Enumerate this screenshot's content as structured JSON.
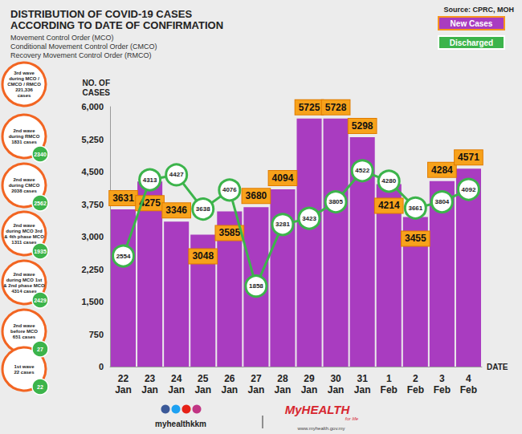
{
  "chart_data": {
    "type": "bar",
    "title": "DISTRIBUTION OF COVID-19 CASES\nACCORDING TO DATE OF CONFIRMATION",
    "subtitle": [
      "Movement Control Order (MCO)",
      "Conditional Movement Control Order (CMCO)",
      "Recovery Movement Control Order (RMCO)"
    ],
    "source": "Source: CPRC, MOH",
    "y_label": "NO. OF\nCASES",
    "x_label": "DATE",
    "categories": [
      "22 Jan",
      "23 Jan",
      "24 Jan",
      "25 Jan",
      "26 Jan",
      "27 Jan",
      "28 Jan",
      "29 Jan",
      "30 Jan",
      "31 Jan",
      "1 Feb",
      "2 Feb",
      "3 Feb",
      "4 Feb"
    ],
    "series": [
      {
        "name": "New Cases",
        "type": "bar",
        "color": "#a93cc0",
        "values": [
          3631,
          4275,
          3346,
          3048,
          3585,
          3680,
          4094,
          5725,
          5728,
          5298,
          4214,
          3455,
          4284,
          4571
        ]
      },
      {
        "name": "Discharged",
        "type": "line",
        "color": "#3cb44b",
        "marker": "circle",
        "values": [
          2554,
          4313,
          4427,
          3638,
          4076,
          1858,
          3281,
          3423,
          3805,
          4522,
          4280,
          3661,
          3804,
          4092
        ]
      }
    ],
    "ylim": [
      0,
      6000
    ],
    "yticks": [
      0,
      750,
      1500,
      2250,
      3000,
      3750,
      4500,
      5250,
      6000
    ],
    "grid": false,
    "legend": "top-right",
    "data_labels": true,
    "annotations": [
      {
        "text": "3rd wave\nduring MCO /\nCMCO / RMCO\n221,336\ncases"
      },
      {
        "text": "2nd wave\nduring RMCO\n1831 cases",
        "discharged": 2340
      },
      {
        "text": "2nd wave\nduring CMCO\n2038 cases",
        "discharged": 2562
      },
      {
        "text": "2nd wave\nduring MCO 3rd\n& 4th phase MCO\n1311 cases",
        "discharged": 1935
      },
      {
        "text": "2nd wave\nduring MCO 1st\n& 2nd phase MCO\n4314 cases",
        "discharged": 2429
      },
      {
        "text": "2nd wave\nbefore MCO\n651 cases",
        "discharged": 27
      },
      {
        "text": "1st wave\n22 cases",
        "discharged": 22
      }
    ],
    "footer": {
      "handle": "myhealthkkm",
      "brand": "MyHEALTH",
      "tagline": "for life",
      "url": "www.myhealth.gov.my"
    }
  }
}
